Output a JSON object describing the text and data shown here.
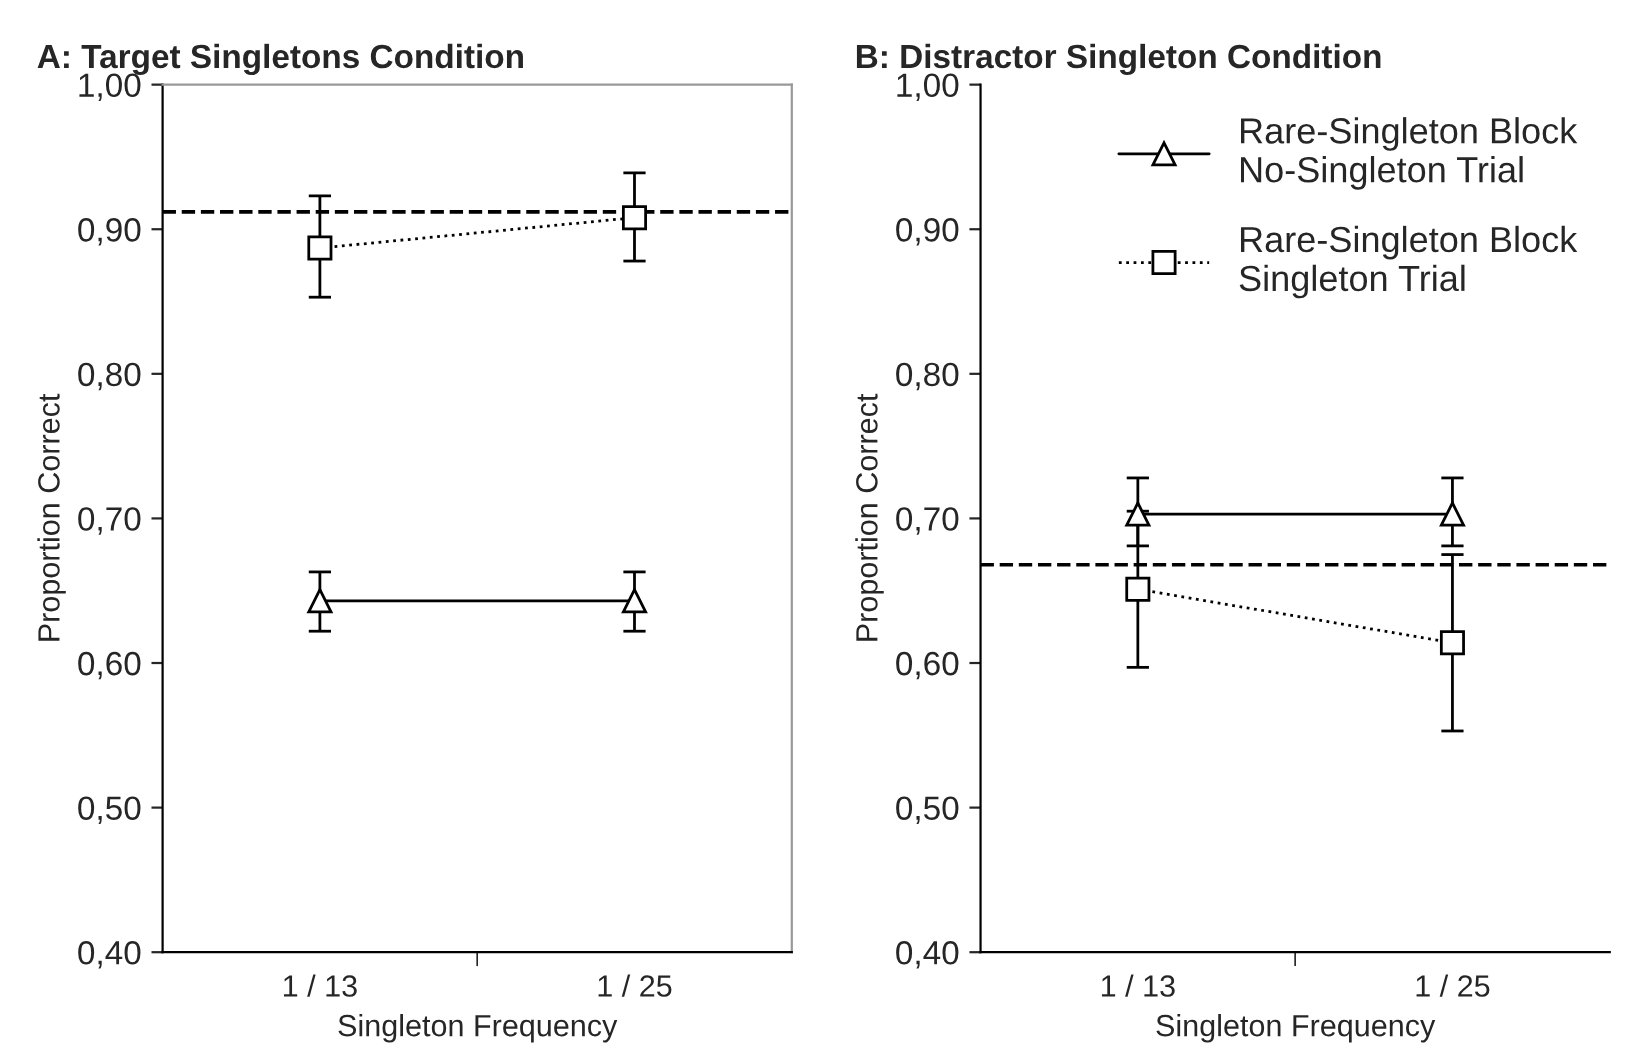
{
  "chart_data": [
    {
      "type": "line",
      "title": "A: Target Singletons Condition",
      "xlabel": "Singleton Frequency",
      "ylabel": "Proportion Correct",
      "categories": [
        "1 / 13",
        "1 / 25"
      ],
      "ylim": [
        0.4,
        1.0
      ],
      "yticks": [
        {
          "value": 0.4,
          "label": "0,40"
        },
        {
          "value": 0.5,
          "label": "0,50"
        },
        {
          "value": 0.6,
          "label": "0,60"
        },
        {
          "value": 0.7,
          "label": "0,70"
        },
        {
          "value": 0.8,
          "label": "0,80"
        },
        {
          "value": 0.9,
          "label": "0,90"
        },
        {
          "value": 1.0,
          "label": "1,00"
        }
      ],
      "grid": false,
      "legend": false,
      "series": [
        {
          "color": "#000000",
          "marker": "triangle",
          "line_style": "solid",
          "values": [
            0.643,
            0.643
          ],
          "errors": [
            [
              0.622,
              0.663
            ],
            [
              0.622,
              0.663
            ]
          ]
        },
        {
          "color": "#000000",
          "marker": "square",
          "line_style": "dotted",
          "values": [
            0.887,
            0.908
          ],
          "errors": [
            [
              0.853,
              0.923
            ],
            [
              0.878,
              0.939
            ]
          ]
        }
      ],
      "ref_lines": [
        {
          "axis": "y",
          "value": 0.912,
          "color": "#000000",
          "line_style": "dashed"
        }
      ]
    },
    {
      "type": "line",
      "title": "B: Distractor Singleton Condition",
      "xlabel": "Singleton Frequency",
      "ylabel": "Proportion Correct",
      "categories": [
        "1 / 13",
        "1 / 25"
      ],
      "ylim": [
        0.4,
        1.0
      ],
      "yticks": [
        {
          "value": 0.4,
          "label": "0,40"
        },
        {
          "value": 0.5,
          "label": "0,50"
        },
        {
          "value": 0.6,
          "label": "0,60"
        },
        {
          "value": 0.7,
          "label": "0,70"
        },
        {
          "value": 0.8,
          "label": "0,80"
        },
        {
          "value": 0.9,
          "label": "0,90"
        },
        {
          "value": 1.0,
          "label": "1,00"
        }
      ],
      "grid": false,
      "legend": "top right",
      "series": [
        {
          "name": "Rare-Singleton Block\nNo-Singleton Trial",
          "color": "#000000",
          "marker": "triangle",
          "line_style": "solid",
          "values": [
            0.703,
            0.703
          ],
          "errors": [
            [
              0.681,
              0.728
            ],
            [
              0.681,
              0.728
            ]
          ]
        },
        {
          "name": "Rare-Singleton Block\nSingleton Trial",
          "color": "#000000",
          "marker": "square",
          "line_style": "dotted",
          "values": [
            0.651,
            0.614
          ],
          "errors": [
            [
              0.597,
              0.705
            ],
            [
              0.553,
              0.675
            ]
          ]
        }
      ],
      "ref_lines": [
        {
          "axis": "y",
          "value": 0.668,
          "color": "#000000",
          "line_style": "dashed"
        }
      ]
    }
  ]
}
